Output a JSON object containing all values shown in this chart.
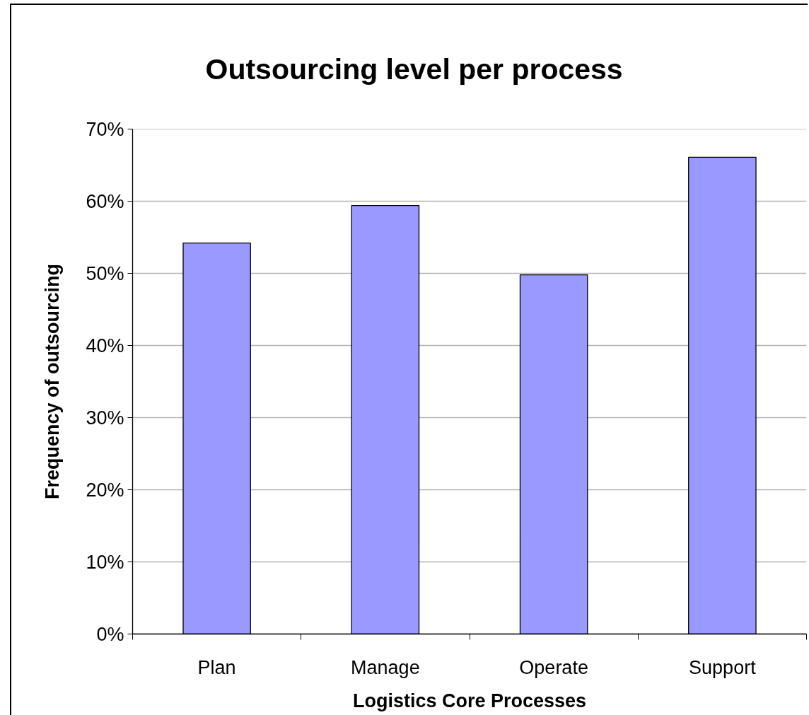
{
  "chart_data": {
    "type": "bar",
    "title": "Outsourcing level per process",
    "xlabel": "Logistics Core Processes",
    "ylabel": "Frequency of outsourcing",
    "categories": [
      "Plan",
      "Manage",
      "Operate",
      "Support"
    ],
    "values": [
      54.2,
      59.4,
      49.8,
      66.1
    ],
    "color": "#9999ff",
    "ylim": [
      0,
      70
    ],
    "yticks": [
      {
        "value": 0,
        "label": "0%"
      },
      {
        "value": 10,
        "label": "10%"
      },
      {
        "value": 20,
        "label": "20%"
      },
      {
        "value": 30,
        "label": "30%"
      },
      {
        "value": 40,
        "label": "40%"
      },
      {
        "value": 50,
        "label": "50%"
      },
      {
        "value": 60,
        "label": "60%"
      },
      {
        "value": 70,
        "label": "70%"
      }
    ],
    "grid": "y"
  }
}
